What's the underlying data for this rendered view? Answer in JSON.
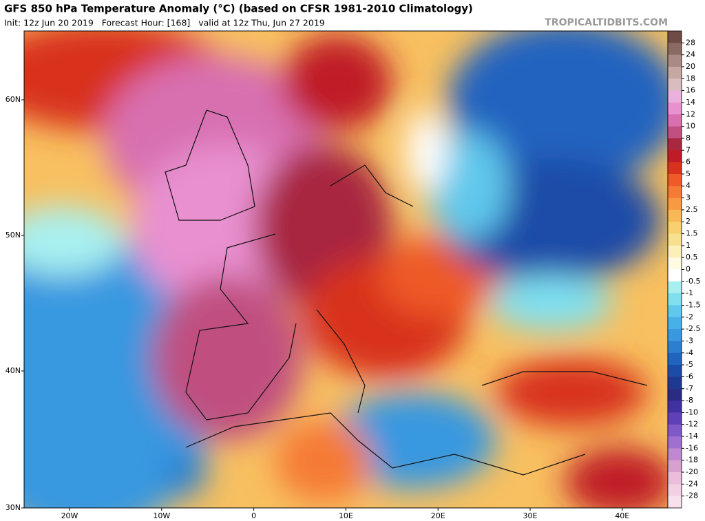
{
  "header": {
    "title": "GFS 850 hPa Temperature Anomaly (°C) (based on CFSR 1981-2010 Climatology)",
    "subtitle": "Init: 12z Jun 20 2019   Forecast Hour: [168]   valid at 12z Thu, Jun 27 2019",
    "site": "TROPICALTIDBITS.COM"
  },
  "map": {
    "lat_labels": [
      "60N",
      "50N",
      "40N",
      "30N"
    ],
    "lon_labels": [
      "20W",
      "10W",
      "0",
      "10E",
      "20E",
      "30E",
      "40E"
    ]
  },
  "colorbar": {
    "labels": [
      28,
      24,
      20,
      18,
      16,
      14,
      12,
      10,
      8,
      7,
      6,
      5,
      4,
      3,
      2.5,
      2,
      1.5,
      1,
      0.5,
      0,
      -0.5,
      -1,
      -1.5,
      -2,
      -2.5,
      -3,
      -4,
      -5,
      -6,
      -7,
      -8,
      -10,
      -12,
      -14,
      -16,
      -18,
      -20,
      -24,
      -28
    ],
    "colors": [
      "#6e4b45",
      "#8c6a64",
      "#aa8a84",
      "#c6a8a2",
      "#d9bcc0",
      "#ecb0dc",
      "#e890d0",
      "#d870b0",
      "#c05080",
      "#a82840",
      "#c01c28",
      "#d8321e",
      "#ee5a28",
      "#f57a34",
      "#f89a44",
      "#f8b858",
      "#f8d070",
      "#f8e090",
      "#fcefb8",
      "#fffbe0",
      "#ffffff",
      "#a8f0f0",
      "#80e0f0",
      "#60c8ec",
      "#48b0e8",
      "#3898e0",
      "#2c7ed0",
      "#2064c0",
      "#1c4ca8",
      "#1e3a90",
      "#2a2c84",
      "#4030a0",
      "#6040b8",
      "#8058c8",
      "#a070d0",
      "#c088d0",
      "#d8a0d0",
      "#ecbcdc",
      "#f4d0e4",
      "#f8e0ec"
    ]
  }
}
